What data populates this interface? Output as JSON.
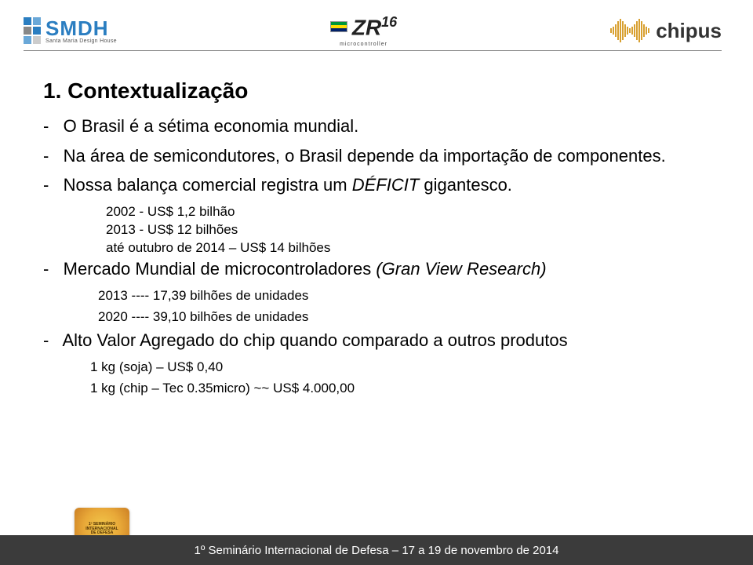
{
  "header": {
    "smdh": {
      "main": "SMDH",
      "sub": "Santa Maria Design House",
      "colors": [
        "#2b7ec1",
        "#6aa8d8",
        "#888888",
        "#2b7ec1",
        "#6aa8d8",
        "#cccccc"
      ]
    },
    "zr16": {
      "text": "ZR",
      "sup": "16",
      "sub": "microcontroller"
    },
    "chipus": {
      "text": "chipus",
      "wave_heights": [
        6,
        10,
        16,
        24,
        30,
        24,
        16,
        10,
        6,
        10,
        16,
        24,
        30,
        24,
        16,
        10,
        6
      ],
      "wave_color": "#d8a030"
    }
  },
  "content": {
    "title": "1. Contextualização",
    "b1": "O Brasil é a sétima economia mundial.",
    "b2": "Na área de semicondutores, o Brasil depende da importação de componentes.",
    "b3_pre": "Nossa balança comercial registra um ",
    "b3_it": "DÉFICIT",
    "b3_post": " gigantesco.",
    "s3a": "2002 - US$ 1,2 bilhão",
    "s3b": "2013 - US$ 12 bilhões",
    "s3c": "até outubro de 2014 – US$ 14 bilhões",
    "b4_pre": "Mercado Mundial de microcontroladores ",
    "b4_it": "(Gran View Research)",
    "s4a": "2013  ---- 17,39 bilhões de unidades",
    "s4b": "2020 ----  39,10 bilhões de unidades",
    "b5": "Alto Valor Agregado do chip quando comparado a outros produtos",
    "s5a": "1 kg (soja) – US$ 0,40",
    "s5b": "1 kg (chip – Tec 0.35micro) ~~  US$ 4.000,00"
  },
  "footer": {
    "text": "1º Seminário Internacional de Defesa – 17 a 19 de novembro de 2014",
    "logo_lines": [
      "1º SEMINÁRIO",
      "INTERNACIONAL",
      "DE DEFESA"
    ]
  },
  "colors": {
    "title": "#000000",
    "body": "#000000",
    "footer_bg": "#3b3b3b",
    "footer_text": "#ffffff"
  }
}
